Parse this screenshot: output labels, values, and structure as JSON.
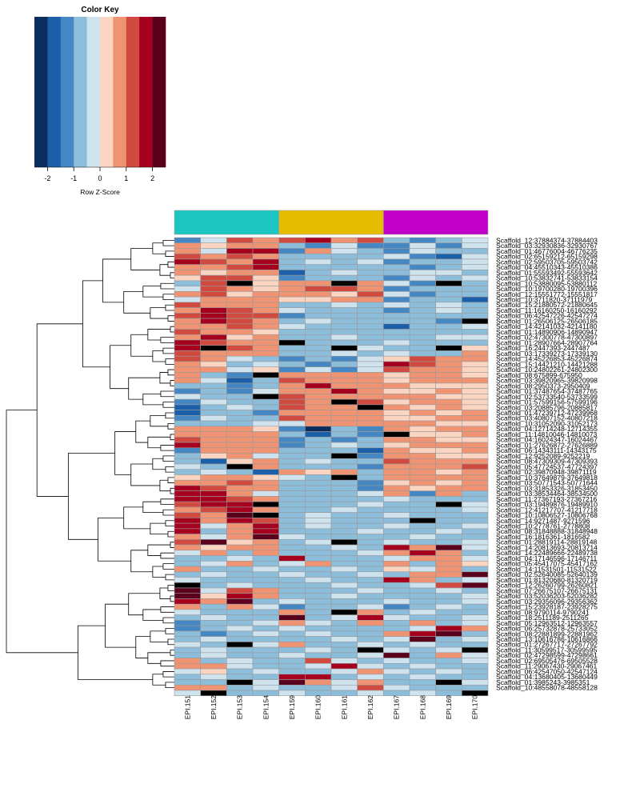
{
  "chart_data": {
    "type": "heatmap",
    "title": "",
    "color_key": {
      "title": "Color Key",
      "xlabel": "Row Z-Score",
      "ticks": [
        "-2",
        "-1",
        "0",
        "1",
        "2"
      ],
      "tick_values": [
        -2,
        -1,
        0,
        1,
        2
      ],
      "range": [
        -2.5,
        2.5
      ],
      "bins": 10,
      "colors": [
        "#0a2d5e",
        "#1c5fa9",
        "#4487c2",
        "#8cbddb",
        "#cfe3ef",
        "#fbd5c2",
        "#ef9373",
        "#d04a40",
        "#a5001e",
        "#5a001c"
      ]
    },
    "nan_color": "#000000",
    "columns": [
      "EPI.151",
      "EPI.152",
      "EPI.153",
      "EPI.154",
      "EPI.159",
      "EPI.160",
      "EPI.161",
      "EPI.162",
      "EPI.167",
      "EPI.168",
      "EPI.169",
      "EPI.170"
    ],
    "column_groups": [
      {
        "color": "#1cc6c2",
        "span": 4
      },
      {
        "color": "#e5bd00",
        "span": 4
      },
      {
        "color": "#c000c8",
        "span": 4
      }
    ],
    "rows": [
      "Scaffold_12:37884374-37884403",
      "Scaffold_03:32930836-32930767",
      "Scaffold_01:46776004-46776235",
      "Scaffold_02:65159212-65159298",
      "Scaffold_02:59503705-59503742",
      "Scaffold_04:45510343-45510386",
      "Scaffold_01:55593492-55593642",
      "Scaffold_10:53832741-53833154",
      "Scaffold_10:53880095-53880112",
      "Scaffold_10:19700280-19700396",
      "Scaffold_12:15551772-15551817",
      "Scaffold_10:3711820-37111979",
      "Scaffold_15:21880572-21880645",
      "Scaffold_11:16160250-16160292",
      "Scaffold_06:42547226-42547274",
      "Scaffold_01:26506125-26506185",
      "Scaffold_14:42141032-42141180",
      "Scaffold_01:14890906-14890947",
      "Scaffold_02:47300778-47300897",
      "Scaffold_01:28907664-28907764",
      "Scaffold_16:2447393-2447487",
      "Scaffold_03:17339273-17339130",
      "Scaffold_14:45226853-45226874",
      "Scaffold_15:14421210-14421288",
      "Scaffold_10:24802261-24802300",
      "Scaffold_08:675899-675950",
      "Scaffold_03:39820965-39820998",
      "Scaffold_08:2950373-2950409",
      "Scaffold_01:37487654-37487765",
      "Scaffold_02:53733540-53733599",
      "Scaffold_01:57599156-57599196",
      "Scaffold_03:20885796-20885817",
      "Scaffold_01:47239712-47239968",
      "Scaffold_03:40807152-40807218",
      "Scaffold_10:31052090-31052173",
      "Scaffold_04:12714248-12714355",
      "Scaffold_11:14810046-14810073",
      "Scaffold_04:16024347-16024467",
      "Scaffold_01:27626872-27626889",
      "Scaffold_06:14343111-14343175",
      "Scaffold_12:9252089-9252219",
      "Scaffold_08:47309309-47309393",
      "Scaffold_05:47724537-47724397",
      "Scaffold_02:39870948-39871119",
      "Scaffold_10:37649879-37649818",
      "Scaffold_03:50771543-50771644",
      "Scaffold_03:31853326-31853450",
      "Scaffold_03:38534464-38534500",
      "Scaffold_11:27367193-27367216",
      "Scaffold_03:19489876-19489910",
      "Scaffold_12:41217707-41217718",
      "Scaffold_10:10806527-10806768",
      "Scaffold_14:9271487-9271596",
      "Scaffold_10:2778761-2778808",
      "Scaffold_08:31848888-31848948",
      "Scaffold_16:1816361-1816582",
      "Scaffold_01:28819114-28819148",
      "Scaffold_14:20813693-20813714",
      "Scaffold_14:22489666-22489738",
      "Scaffold_04:17146596-17146711",
      "Scaffold_05:45417075-45417162",
      "Scaffold_14:11531501-11531522",
      "Scaffold_02:52640085-52640139",
      "Scaffold_01:81320680-81320719",
      "Scaffold_12:26260799-26260821",
      "Scaffold_07:26675107-26675131",
      "Scaffold_03:52036203-52036282",
      "Scaffold_03:29356096-29356362",
      "Scaffold_15:23928187-23928275",
      "Scaffold_08:9790114-9790241",
      "Scaffold_18:2511189-2511265",
      "Scaffold_05:12963512-12963557",
      "Scaffold_06:25732878-25733052",
      "Scaffold_08:22881899-22881962",
      "Scaffold_13:10616786-10616866",
      "Scaffold_01:27267717-27267792",
      "Scaffold_11:30599517-30599595",
      "Scaffold_02:47298599-47298661",
      "Scaffold_02:69505476-69505528",
      "Scaffold_11:29067430-29067461",
      "Scaffold_06:42547050-42547124",
      "Scaffold_04:13680405-13680449",
      "Scaffold_01:3985243-3985351",
      "Scaffold_10:48558078-48558128"
    ],
    "values": [
      [
        -1.5,
        -0.5,
        1.2,
        0.9,
        1.2,
        1.5,
        0.9,
        1.3,
        -1.0,
        -1.2,
        -0.6,
        -0.3
      ],
      [
        0.8,
        0.2,
        0.6,
        0.7,
        -0.8,
        -1.1,
        -0.5,
        -1.1,
        -1.3,
        -0.5,
        -1.1,
        -0.5
      ],
      [
        0.5,
        -0.3,
        1.5,
        1.5,
        -1.1,
        0.8,
        -0.4,
        -0.8,
        -1.3,
        -0.5,
        -0.8,
        -0.7
      ],
      [
        1.1,
        0.8,
        1.2,
        0.9,
        -0.7,
        -0.8,
        -0.7,
        -0.7,
        -0.3,
        -1.1,
        -1.8,
        -0.5
      ],
      [
        1.5,
        1.2,
        0.8,
        1.5,
        -0.7,
        -0.5,
        -0.8,
        -0.4,
        -1.3,
        -0.8,
        -0.6,
        -0.5
      ],
      [
        0.7,
        0.5,
        1.2,
        1.8,
        -0.6,
        -0.7,
        -0.6,
        -0.7,
        -0.9,
        -1.3,
        -0.8,
        -0.5
      ],
      [
        0.6,
        0.3,
        0.5,
        0.6,
        -1.8,
        -0.7,
        -0.4,
        -0.6,
        -0.6,
        -0.5,
        -0.2,
        -0.8
      ],
      [
        0.3,
        1.1,
        1.3,
        0.2,
        -1.1,
        -0.6,
        -0.7,
        -0.6,
        -1.5,
        -0.5,
        -0.6,
        -0.5
      ],
      [
        -0.7,
        1.4,
        "NaN",
        0.4,
        0.8,
        0.9,
        "NaN",
        0.7,
        -0.5,
        -1.3,
        "NaN",
        -0.7
      ],
      [
        -0.5,
        1.1,
        0.5,
        0.4,
        0.8,
        1.0,
        1.3,
        0.8,
        -1.3,
        -0.8,
        -0.6,
        -0.7
      ],
      [
        0.5,
        1.2,
        0.4,
        0.8,
        0.5,
        0.8,
        0.4,
        1.1,
        -0.5,
        -1.3,
        -0.7,
        -0.8
      ],
      [
        -0.3,
        0.7,
        0.6,
        0.9,
        0.2,
        0.3,
        0.6,
        0.5,
        -1.5,
        -0.8,
        -0.9,
        -1.7
      ],
      [
        1.2,
        0.6,
        0.9,
        0.5,
        -0.6,
        -0.8,
        -0.5,
        -0.7,
        -0.4,
        -0.6,
        -0.5,
        -0.6
      ],
      [
        0.9,
        1.5,
        1.4,
        0.5,
        -0.5,
        -0.6,
        -0.8,
        -0.9,
        -1.1,
        -0.6,
        -0.5,
        -0.8
      ],
      [
        1.0,
        1.9,
        1.2,
        1.1,
        -1.1,
        -0.7,
        -0.6,
        -0.8,
        -0.6,
        -0.8,
        -1.0,
        -0.6
      ],
      [
        0.8,
        1.5,
        1.0,
        0.6,
        -0.9,
        -0.5,
        -0.7,
        -0.8,
        -0.6,
        -0.9,
        -1.1,
        "NaN"
      ],
      [
        0.6,
        0.5,
        1.1,
        0.7,
        -0.5,
        -0.9,
        -0.6,
        -0.8,
        -1.8,
        -0.6,
        -0.7,
        -0.4
      ],
      [
        1.2,
        0.8,
        0.7,
        0.3,
        -0.6,
        -0.9,
        -0.7,
        -0.6,
        -0.6,
        -0.9,
        -1.0,
        -0.8
      ],
      [
        0.9,
        1.9,
        0.4,
        0.9,
        -0.8,
        -0.7,
        -0.5,
        -0.8,
        -0.7,
        -0.9,
        -0.4,
        -0.5
      ],
      [
        1.8,
        1.2,
        0.7,
        0.8,
        "NaN",
        -0.8,
        -0.6,
        -0.7,
        -0.5,
        -0.8,
        -0.9,
        -0.6
      ],
      [
        1.9,
        "NaN",
        1.0,
        0.8,
        -0.7,
        -0.8,
        "NaN",
        -0.5,
        -0.7,
        -0.6,
        "NaN",
        0.4
      ],
      [
        1.2,
        0.8,
        0.6,
        0.7,
        -0.6,
        -0.9,
        -0.3,
        -0.9,
        -0.5,
        -0.7,
        -0.9,
        0.5
      ],
      [
        1.1,
        0.6,
        -0.5,
        -0.6,
        -1.3,
        -0.6,
        -1.1,
        -0.5,
        0.3,
        1.2,
        0.7,
        0.5
      ],
      [
        0.8,
        0.4,
        -0.6,
        -0.5,
        -1.0,
        -1.3,
        -0.6,
        -0.5,
        1.9,
        1.2,
        0.9,
        0.4
      ],
      [
        0.7,
        0.5,
        -0.5,
        0.3,
        -1.2,
        -0.5,
        -1.1,
        -0.5,
        1.1,
        0.6,
        0.5,
        0.3
      ],
      [
        0.6,
        -0.6,
        -1.5,
        "NaN",
        0.5,
        0.7,
        0.6,
        0.5,
        0.4,
        0.6,
        0.5,
        0.3
      ],
      [
        0.5,
        -0.5,
        -1.8,
        -0.7,
        1.3,
        0.9,
        0.5,
        0.5,
        0.3,
        0.7,
        0.5,
        0.6
      ],
      [
        -0.6,
        -0.8,
        -1.5,
        -0.8,
        0.5,
        1.8,
        0.9,
        0.7,
        0.5,
        0.4,
        0.3,
        0.2
      ],
      [
        -1.2,
        -0.7,
        -1.1,
        -0.5,
        0.5,
        0.8,
        1.6,
        0.6,
        0.4,
        0.3,
        0.5,
        0.4
      ],
      [
        -0.5,
        -0.6,
        -1.0,
        "NaN",
        1.2,
        0.8,
        0.7,
        0.9,
        0.5,
        0.6,
        0.4,
        0.3
      ],
      [
        -1.1,
        -0.5,
        -0.6,
        -0.8,
        1.2,
        0.6,
        "NaN",
        1.1,
        0.4,
        0.6,
        0.5,
        0.3
      ],
      [
        -2.0,
        -0.8,
        -0.5,
        -0.7,
        1.0,
        0.5,
        0.7,
        "NaN",
        0.5,
        0.3,
        0.6,
        0.4
      ],
      [
        -1.8,
        -0.9,
        -0.6,
        -1.5,
        0.8,
        0.7,
        0.5,
        0.6,
        0.4,
        0.5,
        0.3,
        0.5
      ],
      [
        -1.1,
        -0.5,
        -0.7,
        -0.6,
        1.1,
        0.9,
        0.7,
        0.5,
        0.3,
        0.4,
        0.5,
        0.6
      ],
      [
        -0.6,
        -0.8,
        -1.0,
        -0.5,
        -0.5,
        0.7,
        0.5,
        0.6,
        0.5,
        0.6,
        0.3,
        0.4
      ],
      [
        0.6,
        0.5,
        0.5,
        0.4,
        -1.3,
        -2.2,
        -1.0,
        -1.5,
        0.5,
        0.3,
        0.6,
        0.5
      ],
      [
        0.8,
        0.7,
        0.6,
        0.5,
        -0.7,
        -1.6,
        -0.8,
        -1.2,
        "NaN",
        0.4,
        0.3,
        0.5
      ],
      [
        1.0,
        0.6,
        0.7,
        0.5,
        -1.1,
        -0.9,
        -1.3,
        -0.8,
        0.6,
        0.5,
        0.4,
        0.3
      ],
      [
        1.8,
        0.9,
        0.5,
        0.6,
        -1.1,
        -0.6,
        -0.5,
        -0.8,
        0.4,
        0.5,
        0.6,
        0.5
      ],
      [
        -1.5,
        0.5,
        0.7,
        0.8,
        -0.6,
        -0.9,
        -0.7,
        -1.6,
        0.5,
        0.3,
        0.4,
        0.6
      ],
      [
        -0.6,
        0.4,
        0.5,
        -0.5,
        -0.8,
        -0.7,
        "NaN",
        -1.1,
        0.6,
        0.5,
        0.3,
        0.4
      ],
      [
        -0.7,
        -1.8,
        0.4,
        0.6,
        -0.6,
        -0.5,
        -0.9,
        -0.8,
        1.1,
        0.8,
        0.9,
        0.7
      ],
      [
        -0.5,
        -0.8,
        "NaN",
        0.5,
        -0.8,
        -0.9,
        -0.6,
        -1.1,
        0.9,
        0.6,
        0.5,
        1.0
      ],
      [
        -0.6,
        -0.5,
        -0.8,
        -1.6,
        0.5,
        0.4,
        0.7,
        -0.8,
        0.5,
        0.6,
        0.4,
        0.8
      ],
      [
        0.4,
        0.5,
        0.6,
        0.4,
        -0.5,
        -0.7,
        "NaN",
        -1.0,
        0.5,
        0.7,
        0.6,
        0.5
      ],
      [
        0.5,
        0.8,
        1.0,
        0.6,
        -0.6,
        -0.7,
        -0.8,
        -1.5,
        0.4,
        0.5,
        0.3,
        0.6
      ],
      [
        1.8,
        1.0,
        0.8,
        0.6,
        -0.8,
        -0.6,
        -0.7,
        -1.1,
        0.5,
        0.4,
        0.6,
        0.5
      ],
      [
        1.9,
        1.8,
        0.7,
        -0.5,
        -0.7,
        -0.8,
        -0.6,
        -0.5,
        0.6,
        -1.1,
        0.5,
        -0.6
      ],
      [
        1.5,
        1.9,
        1.2,
        0.8,
        -0.6,
        -0.7,
        -0.8,
        -0.6,
        -0.5,
        -0.8,
        -0.6,
        -0.7
      ],
      [
        1.2,
        1.5,
        1.8,
        "NaN",
        -0.8,
        -0.6,
        -0.7,
        -0.5,
        -0.6,
        -0.7,
        "NaN",
        -0.5
      ],
      [
        0.7,
        1.3,
        1.9,
        0.9,
        -0.6,
        -0.8,
        -0.5,
        -0.7,
        -0.8,
        -0.6,
        -0.7,
        -0.5
      ],
      [
        1.0,
        0.6,
        2.0,
        "NaN",
        -0.7,
        -0.5,
        -0.6,
        -0.8,
        -0.5,
        -0.6,
        -0.8,
        -0.7
      ],
      [
        1.6,
        0.5,
        1.5,
        1.2,
        -0.8,
        -0.5,
        -0.7,
        -0.6,
        -0.7,
        "NaN",
        -0.6,
        -0.8
      ],
      [
        1.9,
        -0.5,
        0.6,
        1.8,
        -0.6,
        -0.5,
        -0.8,
        -0.7,
        -0.5,
        -0.6,
        -0.7,
        -0.5
      ],
      [
        1.8,
        -0.8,
        0.5,
        1.9,
        -0.7,
        -0.8,
        -0.6,
        -0.5,
        -0.6,
        -0.7,
        -0.5,
        -0.6
      ],
      [
        0.6,
        -0.5,
        0.7,
        2.0,
        -0.5,
        -0.6,
        -0.8,
        -0.6,
        -0.7,
        -0.5,
        -0.6,
        -0.7
      ],
      [
        1.2,
        2.0,
        0.4,
        0.8,
        -0.8,
        -0.5,
        "NaN",
        -0.7,
        -0.5,
        -0.6,
        -0.7,
        -0.5
      ],
      [
        0.7,
        0.3,
        0.5,
        0.6,
        -0.6,
        -0.7,
        -0.5,
        -0.6,
        1.9,
        0.8,
        2.0,
        -0.5
      ],
      [
        -0.5,
        0.8,
        -0.6,
        0.7,
        -0.8,
        -0.6,
        -0.7,
        -0.5,
        0.5,
        1.7,
        0.9,
        -0.6
      ],
      [
        -0.7,
        -0.6,
        -0.5,
        -0.6,
        1.9,
        -0.8,
        -0.6,
        -0.7,
        -0.5,
        0.7,
        0.6,
        -0.5
      ],
      [
        -0.6,
        -0.5,
        0.5,
        -0.7,
        -0.5,
        0.7,
        -0.6,
        -0.8,
        0.6,
        -0.7,
        0.5,
        0.4
      ],
      [
        0.5,
        -0.7,
        -0.6,
        -0.5,
        -0.7,
        -0.6,
        -0.5,
        -0.6,
        0.4,
        -0.5,
        0.9,
        -0.7
      ],
      [
        -0.6,
        -0.5,
        -0.7,
        -0.6,
        -0.5,
        -0.7,
        -0.6,
        -0.5,
        -0.6,
        0.5,
        0.8,
        2.2
      ],
      [
        -0.5,
        -0.7,
        -0.6,
        -0.8,
        -0.6,
        -0.5,
        -0.7,
        -0.6,
        1.7,
        0.5,
        -0.6,
        -0.5
      ],
      [
        "NaN",
        -0.6,
        -0.5,
        -0.7,
        -0.8,
        -0.6,
        -0.5,
        -0.7,
        -0.6,
        -0.5,
        1.2,
        2.3
      ],
      [
        2.3,
        -0.5,
        1.2,
        0.8,
        -0.7,
        -0.6,
        -0.8,
        -0.5,
        -0.7,
        -0.6,
        -0.5,
        -0.6
      ],
      [
        2.2,
        0.4,
        1.8,
        0.5,
        -0.6,
        -0.8,
        -0.5,
        -0.6,
        -0.8,
        -0.6,
        -0.7,
        -0.5
      ],
      [
        1.5,
        0.8,
        2.0,
        -0.6,
        -0.5,
        -0.7,
        -0.6,
        -0.8,
        -0.5,
        -0.7,
        -0.6,
        -0.5
      ],
      [
        0.8,
        -0.6,
        0.5,
        -0.5,
        -1.2,
        -0.6,
        -0.7,
        -0.5,
        -1.3,
        -0.6,
        -0.5,
        -0.7
      ],
      [
        -0.5,
        -0.7,
        -0.6,
        -0.8,
        0.7,
        -0.6,
        "NaN",
        0.8,
        -0.6,
        -0.5,
        -0.7,
        -0.6
      ],
      [
        -0.7,
        -0.5,
        -0.8,
        -0.6,
        2.0,
        -0.7,
        -0.5,
        1.9,
        -0.5,
        -0.6,
        -0.8,
        -0.5
      ],
      [
        -1.2,
        -0.8,
        -0.6,
        -0.5,
        0.6,
        -0.5,
        -0.6,
        0.8,
        -0.7,
        0.5,
        -0.6,
        -0.5
      ],
      [
        -1.5,
        -0.7,
        -0.5,
        -0.6,
        -0.5,
        -0.7,
        -0.6,
        -0.8,
        -0.6,
        -0.5,
        1.9,
        0.5
      ],
      [
        -0.8,
        -1.3,
        -0.7,
        -0.5,
        -0.6,
        -0.5,
        -0.8,
        -0.6,
        0.5,
        1.8,
        2.0,
        -0.6
      ],
      [
        -0.6,
        -0.5,
        -0.7,
        -0.6,
        -0.7,
        -0.6,
        -0.5,
        -0.7,
        -0.5,
        2.1,
        -0.6,
        -0.5
      ],
      [
        -0.5,
        -0.6,
        "NaN",
        -0.5,
        0.5,
        -0.6,
        -0.7,
        -0.5,
        -0.6,
        -0.5,
        -0.7,
        -0.6
      ],
      [
        -0.7,
        -0.5,
        -0.6,
        -0.8,
        -0.6,
        -0.5,
        -0.6,
        "NaN",
        -0.5,
        -0.6,
        -0.5,
        "NaN"
      ],
      [
        -0.6,
        -0.5,
        -0.7,
        -0.6,
        -0.5,
        -0.6,
        -0.7,
        -0.5,
        2.0,
        -0.6,
        0.7,
        -0.5
      ],
      [
        0.5,
        -0.6,
        -0.5,
        -0.7,
        -0.6,
        1.2,
        -0.5,
        -0.6,
        -0.5,
        -0.7,
        -0.6,
        -0.5
      ],
      [
        0.6,
        0.5,
        -0.5,
        -0.6,
        -0.7,
        -0.5,
        1.8,
        -0.5,
        -0.6,
        -0.5,
        -0.7,
        -0.6
      ],
      [
        -0.5,
        0.4,
        -0.6,
        -0.5,
        -0.6,
        -0.7,
        -0.5,
        0.7,
        -0.5,
        -0.6,
        -0.5,
        -0.7
      ],
      [
        -0.6,
        -0.5,
        -0.7,
        -0.6,
        1.9,
        1.5,
        -0.6,
        -0.5,
        -0.6,
        -0.5,
        -0.7,
        -0.6
      ],
      [
        -0.7,
        -0.6,
        "NaN",
        -0.5,
        2.0,
        0.6,
        -0.5,
        0.8,
        -0.6,
        -0.7,
        "NaN",
        -0.5
      ],
      [
        0.5,
        0.8,
        -0.6,
        -0.5,
        -0.6,
        -0.7,
        -0.5,
        1.1,
        -0.5,
        -0.6,
        -0.7,
        -0.6
      ],
      [
        -0.5,
        "NaN",
        -0.6,
        -0.7,
        -0.5,
        -0.6,
        -0.7,
        -0.5,
        -0.6,
        -0.5,
        -0.6,
        "NaN"
      ]
    ]
  }
}
